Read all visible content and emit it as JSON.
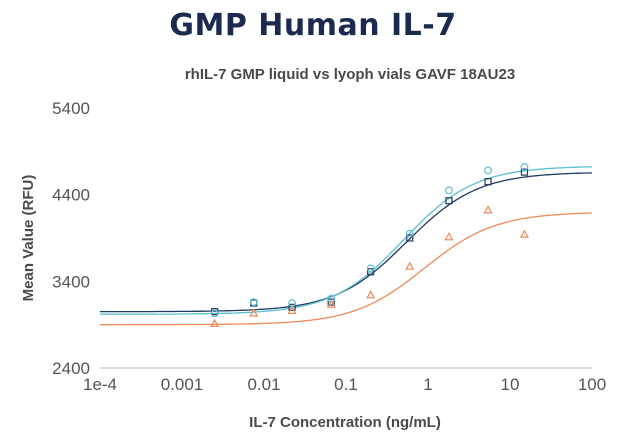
{
  "header": {
    "title": "GMP Human IL-7",
    "subtitle": "rhIL-7 GMP liquid vs lyoph vials GAVF 18AU23"
  },
  "chart_data": {
    "type": "scatter",
    "xscale": "log",
    "xlim": [
      0.0001,
      100
    ],
    "ylim": [
      2400,
      5400
    ],
    "xticks": [
      "1e-4",
      "0.001",
      "0.01",
      "0.1",
      "1",
      "10",
      "100"
    ],
    "xtick_values": [
      0.0001,
      0.001,
      0.01,
      0.1,
      1,
      10,
      100
    ],
    "yticks": [
      "2400",
      "3400",
      "4400",
      "5400"
    ],
    "ytick_values": [
      2400,
      3400,
      4400,
      5400
    ],
    "xlabel": "IL-7 Concentration (ng/mL)",
    "ylabel": "Mean Value (RFU)",
    "grid": false,
    "series": [
      {
        "color": "#1f3a5f",
        "marker": "square",
        "x": [
          0.0025,
          0.0075,
          0.022,
          0.066,
          0.2,
          0.6,
          1.8,
          5.4,
          15
        ],
        "y": [
          3050,
          3150,
          3100,
          3160,
          3510,
          3900,
          4330,
          4550,
          4660
        ],
        "fit": {
          "bottom": 3050,
          "top": 4660,
          "ec50": 0.55,
          "hill": 1.0
        }
      },
      {
        "color": "#5bc0d0",
        "marker": "circle",
        "x": [
          0.0025,
          0.0075,
          0.022,
          0.066,
          0.2,
          0.6,
          1.8,
          5.4,
          15
        ],
        "y": [
          3030,
          3160,
          3150,
          3200,
          3550,
          3950,
          4450,
          4680,
          4720
        ],
        "fit": {
          "bottom": 3020,
          "top": 4730,
          "ec50": 0.5,
          "hill": 1.0
        }
      },
      {
        "color": "#ee8a57",
        "marker": "triangle",
        "x": [
          0.0025,
          0.0075,
          0.022,
          0.066,
          0.2,
          0.6,
          1.8,
          5.4,
          15
        ],
        "y": [
          2910,
          3030,
          3060,
          3130,
          3240,
          3570,
          3910,
          4220,
          3940
        ],
        "fit": {
          "bottom": 2900,
          "top": 4200,
          "ec50": 0.9,
          "hill": 1.0
        }
      }
    ]
  }
}
